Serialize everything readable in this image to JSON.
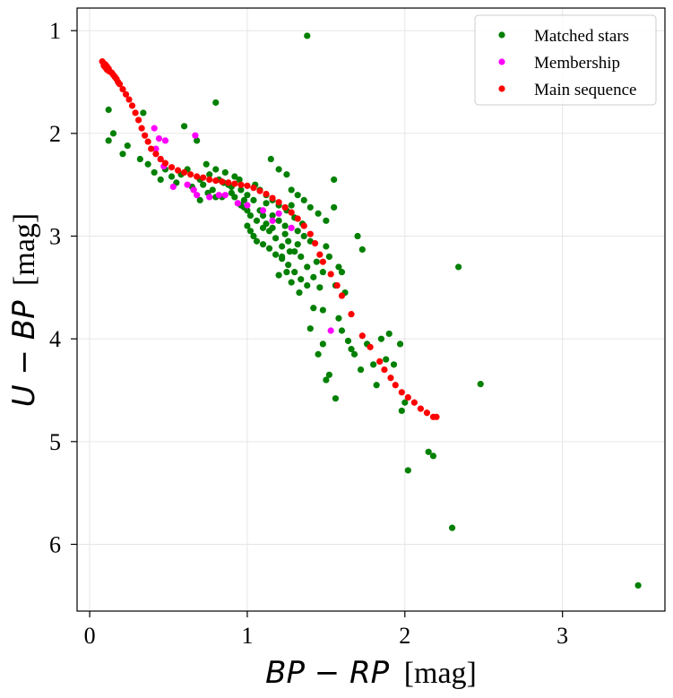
{
  "chart_data": {
    "type": "scatter",
    "title": "",
    "xlabel": {
      "math": "BP − RP",
      "unit": "[mag]"
    },
    "ylabel": {
      "math": "U − BP",
      "unit": "[mag]"
    },
    "xlim": [
      -0.08,
      3.65
    ],
    "ylim": [
      6.65,
      0.78
    ],
    "y_inverted": true,
    "grid": true,
    "legend_position": "top-right",
    "x_ticks": [
      0,
      1,
      2,
      3
    ],
    "y_ticks": [
      1,
      2,
      3,
      4,
      5,
      6
    ],
    "series": [
      {
        "name": "Matched stars",
        "color": "#008000",
        "points": [
          [
            1.38,
            1.05
          ],
          [
            0.12,
            1.77
          ],
          [
            0.34,
            1.8
          ],
          [
            0.8,
            1.7
          ],
          [
            0.6,
            1.93
          ],
          [
            0.12,
            2.07
          ],
          [
            0.15,
            2.0
          ],
          [
            0.68,
            2.07
          ],
          [
            0.24,
            2.12
          ],
          [
            0.21,
            2.2
          ],
          [
            0.32,
            2.25
          ],
          [
            0.37,
            2.3
          ],
          [
            0.41,
            2.38
          ],
          [
            0.48,
            2.35
          ],
          [
            0.45,
            2.45
          ],
          [
            0.52,
            2.42
          ],
          [
            0.55,
            2.48
          ],
          [
            0.58,
            2.4
          ],
          [
            0.62,
            2.35
          ],
          [
            0.66,
            2.55
          ],
          [
            0.7,
            2.45
          ],
          [
            0.72,
            2.5
          ],
          [
            0.74,
            2.3
          ],
          [
            0.76,
            2.4
          ],
          [
            0.78,
            2.55
          ],
          [
            0.8,
            2.35
          ],
          [
            0.82,
            2.45
          ],
          [
            0.84,
            2.62
          ],
          [
            0.86,
            2.38
          ],
          [
            0.88,
            2.5
          ],
          [
            0.9,
            2.58
          ],
          [
            0.92,
            2.42
          ],
          [
            0.94,
            2.68
          ],
          [
            0.96,
            2.55
          ],
          [
            0.98,
            2.72
          ],
          [
            1.0,
            2.6
          ],
          [
            1.02,
            2.8
          ],
          [
            1.04,
            2.65
          ],
          [
            1.06,
            2.85
          ],
          [
            1.08,
            2.75
          ],
          [
            1.1,
            2.92
          ],
          [
            1.12,
            2.68
          ],
          [
            1.14,
            2.95
          ],
          [
            1.16,
            2.8
          ],
          [
            1.18,
            3.02
          ],
          [
            1.2,
            2.85
          ],
          [
            1.22,
            3.1
          ],
          [
            1.24,
            2.9
          ],
          [
            1.26,
            3.05
          ],
          [
            1.28,
            2.7
          ],
          [
            1.3,
            3.15
          ],
          [
            1.32,
            2.95
          ],
          [
            1.34,
            3.2
          ],
          [
            1.36,
            3.0
          ],
          [
            1.38,
            3.3
          ],
          [
            1.4,
            3.05
          ],
          [
            1.42,
            3.4
          ],
          [
            1.44,
            3.25
          ],
          [
            1.46,
            3.5
          ],
          [
            1.48,
            3.35
          ],
          [
            1.0,
            2.9
          ],
          [
            1.02,
            2.95
          ],
          [
            1.04,
            3.0
          ],
          [
            1.06,
            3.05
          ],
          [
            1.1,
            3.08
          ],
          [
            1.14,
            3.12
          ],
          [
            1.18,
            3.18
          ],
          [
            1.22,
            3.22
          ],
          [
            1.26,
            3.28
          ],
          [
            1.3,
            3.35
          ],
          [
            1.34,
            3.42
          ],
          [
            1.38,
            3.48
          ],
          [
            1.05,
            2.5
          ],
          [
            1.08,
            2.55
          ],
          [
            1.12,
            2.6
          ],
          [
            1.16,
            2.65
          ],
          [
            1.2,
            2.7
          ],
          [
            1.25,
            2.75
          ],
          [
            1.3,
            2.82
          ],
          [
            1.35,
            2.88
          ],
          [
            0.95,
            2.45
          ],
          [
            0.9,
            2.52
          ],
          [
            0.85,
            2.48
          ],
          [
            0.8,
            2.62
          ],
          [
            0.75,
            2.58
          ],
          [
            0.7,
            2.65
          ],
          [
            0.65,
            2.52
          ],
          [
            1.15,
            2.25
          ],
          [
            1.2,
            2.35
          ],
          [
            1.25,
            2.4
          ],
          [
            1.28,
            2.55
          ],
          [
            1.32,
            2.6
          ],
          [
            1.36,
            2.65
          ],
          [
            1.4,
            2.72
          ],
          [
            1.45,
            2.78
          ],
          [
            1.5,
            2.85
          ],
          [
            1.55,
            2.45
          ],
          [
            1.55,
            2.72
          ],
          [
            1.5,
            3.1
          ],
          [
            1.52,
            3.2
          ],
          [
            1.58,
            3.3
          ],
          [
            1.6,
            3.35
          ],
          [
            1.56,
            3.48
          ],
          [
            1.62,
            3.55
          ],
          [
            1.7,
            3.0
          ],
          [
            1.73,
            3.13
          ],
          [
            1.58,
            3.8
          ],
          [
            1.48,
            3.72
          ],
          [
            1.42,
            3.7
          ],
          [
            1.4,
            3.9
          ],
          [
            1.45,
            4.15
          ],
          [
            1.48,
            4.05
          ],
          [
            1.5,
            4.4
          ],
          [
            1.52,
            4.35
          ],
          [
            1.56,
            4.58
          ],
          [
            1.6,
            3.92
          ],
          [
            1.64,
            4.02
          ],
          [
            1.68,
            4.15
          ],
          [
            1.72,
            4.3
          ],
          [
            1.66,
            4.1
          ],
          [
            1.76,
            4.05
          ],
          [
            1.8,
            4.25
          ],
          [
            1.82,
            4.45
          ],
          [
            1.85,
            4.0
          ],
          [
            1.88,
            4.2
          ],
          [
            1.9,
            3.95
          ],
          [
            1.93,
            4.25
          ],
          [
            1.97,
            4.05
          ],
          [
            1.98,
            4.7
          ],
          [
            2.0,
            4.62
          ],
          [
            2.02,
            5.28
          ],
          [
            2.15,
            5.1
          ],
          [
            2.18,
            5.14
          ],
          [
            2.34,
            3.3
          ],
          [
            2.3,
            5.84
          ],
          [
            2.48,
            4.44
          ],
          [
            3.48,
            6.4
          ],
          [
            1.25,
            3.35
          ],
          [
            1.28,
            3.45
          ],
          [
            1.33,
            3.55
          ],
          [
            1.22,
            3.2
          ],
          [
            1.2,
            3.38
          ],
          [
            1.27,
            3.15
          ],
          [
            1.1,
            2.8
          ],
          [
            1.0,
            2.75
          ],
          [
            0.98,
            2.65
          ],
          [
            0.96,
            2.7
          ],
          [
            0.92,
            2.62
          ],
          [
            1.12,
            2.88
          ],
          [
            1.16,
            2.92
          ],
          [
            1.24,
            2.98
          ],
          [
            1.32,
            3.08
          ]
        ]
      },
      {
        "name": "Membership",
        "color": "#ff00ff",
        "points": [
          [
            0.41,
            1.95
          ],
          [
            0.44,
            2.05
          ],
          [
            0.48,
            2.07
          ],
          [
            0.67,
            2.02
          ],
          [
            0.42,
            2.15
          ],
          [
            0.45,
            2.25
          ],
          [
            0.47,
            2.32
          ],
          [
            0.53,
            2.52
          ],
          [
            0.62,
            2.5
          ],
          [
            0.66,
            2.55
          ],
          [
            0.68,
            2.6
          ],
          [
            0.76,
            2.62
          ],
          [
            0.82,
            2.6
          ],
          [
            0.86,
            2.6
          ],
          [
            0.94,
            2.68
          ],
          [
            1.0,
            2.7
          ],
          [
            1.1,
            2.75
          ],
          [
            1.16,
            2.85
          ],
          [
            1.2,
            2.78
          ],
          [
            1.28,
            2.92
          ],
          [
            1.53,
            3.92
          ]
        ]
      },
      {
        "name": "Main sequence",
        "color": "#ff0000",
        "points": [
          [
            0.08,
            1.3
          ],
          [
            0.09,
            1.32
          ],
          [
            0.1,
            1.33
          ],
          [
            0.11,
            1.35
          ],
          [
            0.12,
            1.37
          ],
          [
            0.13,
            1.4
          ],
          [
            0.15,
            1.43
          ],
          [
            0.17,
            1.47
          ],
          [
            0.19,
            1.52
          ],
          [
            0.21,
            1.57
          ],
          [
            0.23,
            1.62
          ],
          [
            0.25,
            1.67
          ],
          [
            0.27,
            1.73
          ],
          [
            0.29,
            1.8
          ],
          [
            0.31,
            1.87
          ],
          [
            0.33,
            1.95
          ],
          [
            0.35,
            2.02
          ],
          [
            0.37,
            2.08
          ],
          [
            0.39,
            2.15
          ],
          [
            0.42,
            2.2
          ],
          [
            0.45,
            2.25
          ],
          [
            0.48,
            2.29
          ],
          [
            0.52,
            2.33
          ],
          [
            0.56,
            2.36
          ],
          [
            0.6,
            2.38
          ],
          [
            0.64,
            2.4
          ],
          [
            0.68,
            2.42
          ],
          [
            0.72,
            2.43
          ],
          [
            0.76,
            2.45
          ],
          [
            0.8,
            2.46
          ],
          [
            0.84,
            2.47
          ],
          [
            0.88,
            2.48
          ],
          [
            0.92,
            2.49
          ],
          [
            0.96,
            2.5
          ],
          [
            1.0,
            2.51
          ],
          [
            1.04,
            2.53
          ],
          [
            1.08,
            2.56
          ],
          [
            1.12,
            2.59
          ],
          [
            1.16,
            2.63
          ],
          [
            1.2,
            2.67
          ],
          [
            1.24,
            2.72
          ],
          [
            1.28,
            2.77
          ],
          [
            1.32,
            2.83
          ],
          [
            1.36,
            2.9
          ],
          [
            1.4,
            2.98
          ],
          [
            1.43,
            3.07
          ],
          [
            1.46,
            3.18
          ],
          [
            1.48,
            3.25
          ],
          [
            1.53,
            3.37
          ],
          [
            1.57,
            3.48
          ],
          [
            1.6,
            3.58
          ],
          [
            1.66,
            3.76
          ],
          [
            1.73,
            3.97
          ],
          [
            1.78,
            4.08
          ],
          [
            1.84,
            4.22
          ],
          [
            1.87,
            4.3
          ],
          [
            1.91,
            4.38
          ],
          [
            1.94,
            4.45
          ],
          [
            1.98,
            4.52
          ],
          [
            2.02,
            4.57
          ],
          [
            2.06,
            4.62
          ],
          [
            2.1,
            4.68
          ],
          [
            2.14,
            4.72
          ],
          [
            2.18,
            4.76
          ],
          [
            2.2,
            4.76
          ],
          [
            0.09,
            1.34
          ],
          [
            0.1,
            1.36
          ],
          [
            0.11,
            1.38
          ],
          [
            0.12,
            1.39
          ],
          [
            0.14,
            1.41
          ],
          [
            0.16,
            1.45
          ],
          [
            0.18,
            1.5
          ]
        ]
      }
    ]
  }
}
